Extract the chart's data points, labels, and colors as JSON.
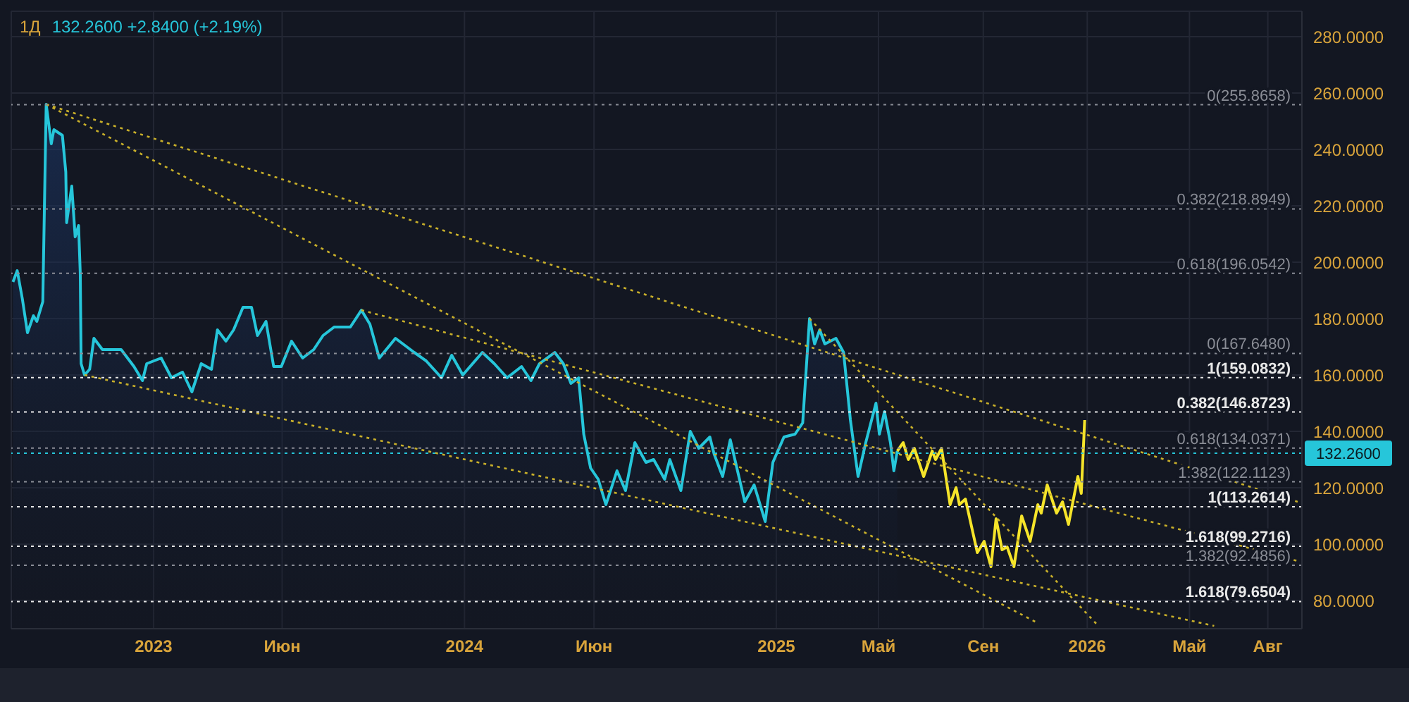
{
  "chart_data": {
    "type": "line",
    "title": "1Д",
    "subtitle": "132.2600 +2.8400 (+2.19%)",
    "xlim": [
      "2022-07-18",
      "2026-09-10"
    ],
    "xticks": [
      {
        "value": "2023-01-01",
        "label": "2023"
      },
      {
        "value": "2023-06-01",
        "label": "Июн"
      },
      {
        "value": "2024-01-01",
        "label": "2024"
      },
      {
        "value": "2024-06-01",
        "label": "Июн"
      },
      {
        "value": "2025-01-01",
        "label": "2025"
      },
      {
        "value": "2025-05-01",
        "label": "Май"
      },
      {
        "value": "2025-09-01",
        "label": "Сен"
      },
      {
        "value": "2026-01-01",
        "label": "2026"
      },
      {
        "value": "2026-05-01",
        "label": "Май"
      },
      {
        "value": "2026-08-01",
        "label": "Авг"
      }
    ],
    "ylim": [
      70,
      289
    ],
    "yticks": [
      {
        "value": 80,
        "label": "80.0000"
      },
      {
        "value": 100,
        "label": "100.0000"
      },
      {
        "value": 120,
        "label": "120.0000"
      },
      {
        "value": 140,
        "label": "140.0000"
      },
      {
        "value": 160,
        "label": "160.0000"
      },
      {
        "value": 180,
        "label": "180.0000"
      },
      {
        "value": 200,
        "label": "200.0000"
      },
      {
        "value": 220,
        "label": "220.0000"
      },
      {
        "value": 240,
        "label": "240.0000"
      },
      {
        "value": 260,
        "label": "260.0000"
      },
      {
        "value": 280,
        "label": "280.0000"
      }
    ],
    "grid": true,
    "marker": "none",
    "series": [
      {
        "type": "area",
        "color": "#26c6da",
        "x": [
          "2022-07-20",
          "2022-07-25",
          "2022-07-31",
          "2022-08-06",
          "2022-08-13",
          "2022-08-17",
          "2022-08-22",
          "2022-08-24",
          "2022-08-28",
          "2022-09-03",
          "2022-09-06",
          "2022-09-16",
          "2022-09-20",
          "2022-09-21",
          "2022-09-27",
          "2022-10-01",
          "2022-10-05",
          "2022-10-07",
          "2022-10-08",
          "2022-10-12",
          "2022-10-18",
          "2022-10-23",
          "2022-11-02",
          "2022-11-11",
          "2022-11-24",
          "2022-12-09",
          "2022-12-19",
          "2022-12-24",
          "2023-01-10",
          "2023-01-22",
          "2023-02-04",
          "2023-02-15",
          "2023-02-26",
          "2023-03-10",
          "2023-03-17",
          "2023-03-27",
          "2023-04-05",
          "2023-04-16",
          "2023-04-26",
          "2023-05-03",
          "2023-05-13",
          "2023-05-22",
          "2023-05-31",
          "2023-06-12",
          "2023-06-25",
          "2023-07-08",
          "2023-07-19",
          "2023-08-01",
          "2023-08-20",
          "2023-09-02",
          "2023-09-12",
          "2023-09-23",
          "2023-10-12",
          "2023-11-03",
          "2023-11-17",
          "2023-12-05",
          "2023-12-17",
          "2023-12-30",
          "2024-01-22",
          "2024-02-05",
          "2024-02-20",
          "2024-03-08",
          "2024-03-19",
          "2024-03-29",
          "2024-04-16",
          "2024-04-26",
          "2024-05-05",
          "2024-05-14",
          "2024-05-20",
          "2024-05-28",
          "2024-06-06",
          "2024-06-15",
          "2024-06-28",
          "2024-07-08",
          "2024-07-19",
          "2024-08-01",
          "2024-08-10",
          "2024-08-23",
          "2024-08-29",
          "2024-09-11",
          "2024-09-22",
          "2024-10-02",
          "2024-10-15",
          "2024-10-20",
          "2024-10-30",
          "2024-11-08",
          "2024-11-25",
          "2024-12-06",
          "2024-12-19",
          "2024-12-28",
          "2025-01-10",
          "2025-01-23",
          "2025-02-01",
          "2025-02-09",
          "2025-02-15",
          "2025-02-21",
          "2025-02-27",
          "2025-03-12",
          "2025-03-21",
          "2025-03-29",
          "2025-04-07",
          "2025-04-16",
          "2025-04-28",
          "2025-05-02",
          "2025-05-08",
          "2025-05-15",
          "2025-05-19",
          "2025-05-23"
        ],
        "values": [
          193,
          197,
          187,
          175,
          181,
          179,
          184,
          186,
          256,
          242,
          247,
          245,
          232,
          214,
          227,
          209,
          213,
          196,
          164,
          160,
          162,
          173,
          169,
          169,
          169,
          163,
          158,
          164,
          166,
          159,
          161,
          154,
          164,
          162,
          176,
          172,
          176,
          184,
          184,
          174,
          179,
          163,
          163,
          172,
          166,
          169,
          174,
          177,
          177,
          183,
          178,
          166,
          173,
          168,
          165,
          159,
          167,
          160,
          168,
          164,
          159,
          163,
          158,
          164,
          168,
          164,
          157,
          159,
          139,
          127,
          123,
          114,
          126,
          119,
          136,
          129,
          130,
          123,
          130,
          119,
          140,
          134,
          138,
          132,
          124,
          137,
          115,
          121,
          108,
          129,
          138,
          139,
          143,
          180,
          171,
          176,
          171,
          173,
          168,
          144,
          124,
          136,
          150,
          139,
          147,
          136,
          126,
          133
        ]
      },
      {
        "color": "#f5e42a",
        "x": [
          "2025-05-23",
          "2025-05-30",
          "2025-06-05",
          "2025-06-12",
          "2025-06-23",
          "2025-07-03",
          "2025-07-07",
          "2025-07-14",
          "2025-07-24",
          "2025-07-31",
          "2025-08-04",
          "2025-08-11",
          "2025-08-25",
          "2025-09-02",
          "2025-09-10",
          "2025-09-16",
          "2025-09-23",
          "2025-09-29",
          "2025-10-07",
          "2025-10-16",
          "2025-10-26",
          "2025-11-04",
          "2025-11-08",
          "2025-11-15",
          "2025-11-26",
          "2025-12-03",
          "2025-12-10",
          "2025-12-21",
          "2025-12-25",
          "2025-12-29"
        ],
        "values": [
          133,
          136,
          130,
          134,
          124,
          133,
          130,
          134,
          114,
          120,
          114,
          116,
          97,
          101,
          92,
          109,
          98,
          99,
          92,
          110,
          101,
          114,
          111,
          121,
          111,
          115,
          107,
          124,
          118,
          144
        ]
      },
      {
        "color": "#c9b02a",
        "line_style": "dotted",
        "x": [
          "2022-08-28",
          "2026-09-05"
        ],
        "values": [
          256,
          115
        ]
      },
      {
        "color": "#c9b02a",
        "line_style": "dotted",
        "x": [
          "2022-08-28",
          "2025-11-04"
        ],
        "values": [
          256,
          72
        ]
      },
      {
        "color": "#c9b02a",
        "line_style": "dotted",
        "x": [
          "2023-09-02",
          "2026-09-05"
        ],
        "values": [
          183,
          94
        ]
      },
      {
        "color": "#c9b02a",
        "line_style": "dotted",
        "x": [
          "2022-10-12",
          "2026-05-30"
        ],
        "values": [
          160,
          71
        ]
      },
      {
        "color": "#c9b02a",
        "line_style": "dotted",
        "x": [
          "2025-02-09",
          "2026-01-14"
        ],
        "values": [
          180,
          71
        ]
      }
    ],
    "ref_lines": [
      {
        "axis": "y",
        "value": 255.8658,
        "label": "0(255.8658)",
        "color": "#8a8d96",
        "line_style": "dotted"
      },
      {
        "axis": "y",
        "value": 218.8949,
        "label": "0.382(218.8949)",
        "color": "#8a8d96",
        "line_style": "dotted"
      },
      {
        "axis": "y",
        "value": 196.0542,
        "label": "0.618(196.0542)",
        "color": "#8a8d96",
        "line_style": "dotted"
      },
      {
        "axis": "y",
        "value": 167.648,
        "label": "0(167.6480)",
        "color": "#8a8d96",
        "line_style": "dotted"
      },
      {
        "axis": "y",
        "value": 159.0832,
        "label": "1(159.0832)",
        "color": "#e8e8e8",
        "line_style": "dotted"
      },
      {
        "axis": "y",
        "value": 146.8723,
        "label": "0.382(146.8723)",
        "color": "#e8e8e8",
        "line_style": "dotted"
      },
      {
        "axis": "y",
        "value": 134.0371,
        "label": "0.618(134.0371)",
        "color": "#8a8d96",
        "line_style": "dotted"
      },
      {
        "axis": "y",
        "value": 132.26,
        "label": "132.2600",
        "color": "#26c6da",
        "line_style": "dotted"
      },
      {
        "axis": "y",
        "value": 122.1123,
        "label": "1.382(122.1123)",
        "color": "#8a8d96",
        "line_style": "dotted"
      },
      {
        "axis": "y",
        "value": 113.2614,
        "label": "1(113.2614)",
        "color": "#e8e8e8",
        "line_style": "dotted"
      },
      {
        "axis": "y",
        "value": 99.2716,
        "label": "1.618(99.2716)",
        "color": "#e8e8e8",
        "line_style": "dotted"
      },
      {
        "axis": "y",
        "value": 92.4856,
        "label": "1.382(92.4856)",
        "color": "#8a8d96",
        "line_style": "dotted"
      },
      {
        "axis": "y",
        "value": 79.6504,
        "label": "1.618(79.6504)",
        "color": "#e8e8e8",
        "line_style": "dotted"
      }
    ]
  }
}
